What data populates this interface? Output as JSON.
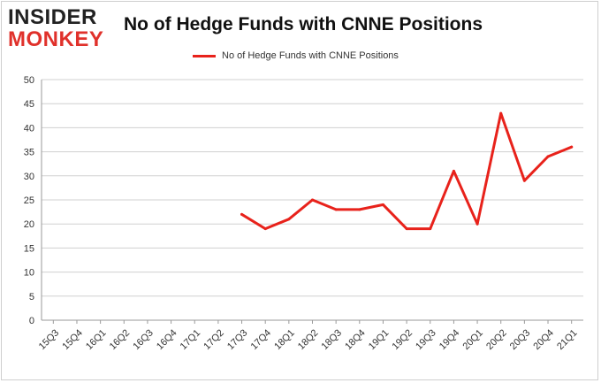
{
  "logo": {
    "line1": "INSIDER",
    "line2": "MONKEY"
  },
  "chart_data": {
    "type": "line",
    "title": "No of Hedge Funds with CNNE Positions",
    "xlabel": "",
    "ylabel": "",
    "ylim": [
      0,
      50
    ],
    "yticks": [
      0,
      5,
      10,
      15,
      20,
      25,
      30,
      35,
      40,
      45,
      50
    ],
    "grid": true,
    "legend_position": "top-center",
    "categories": [
      "15Q3",
      "15Q4",
      "16Q1",
      "16Q2",
      "16Q3",
      "16Q4",
      "17Q1",
      "17Q2",
      "17Q3",
      "17Q4",
      "18Q1",
      "18Q2",
      "18Q3",
      "18Q4",
      "19Q1",
      "19Q2",
      "19Q3",
      "19Q4",
      "20Q1",
      "20Q2",
      "20Q3",
      "20Q4",
      "21Q1"
    ],
    "series": [
      {
        "name": "No of Hedge Funds with CNNE Positions",
        "color": "#e8221b",
        "values": [
          null,
          null,
          null,
          null,
          null,
          null,
          null,
          null,
          22,
          19,
          21,
          25,
          23,
          23,
          24,
          19,
          19,
          31,
          20,
          43,
          29,
          34,
          36
        ]
      }
    ]
  }
}
